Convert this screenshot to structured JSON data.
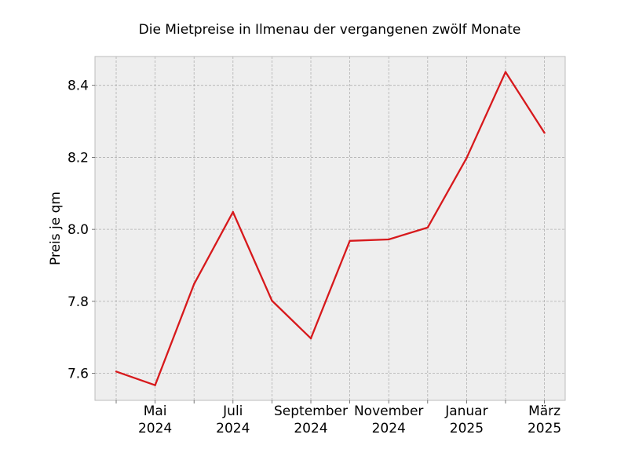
{
  "chart_data": {
    "type": "line",
    "title": "Die Mietpreise in Ilmenau der vergangenen zwölf Monate",
    "xlabel": "",
    "ylabel": "Preis je qm",
    "x": [
      "2024-04",
      "2024-05",
      "2024-06",
      "2024-07",
      "2024-08",
      "2024-09",
      "2024-10",
      "2024-11",
      "2024-12",
      "2025-01",
      "2025-02",
      "2025-03"
    ],
    "x_tick_labels": [
      {
        "x": "2024-05",
        "line1": "Mai",
        "line2": "2024"
      },
      {
        "x": "2024-07",
        "line1": "Juli",
        "line2": "2024"
      },
      {
        "x": "2024-09",
        "line1": "September",
        "line2": "2024"
      },
      {
        "x": "2024-11",
        "line1": "November",
        "line2": "2024"
      },
      {
        "x": "2025-01",
        "line1": "Januar",
        "line2": "2025"
      },
      {
        "x": "2025-03",
        "line1": "März",
        "line2": "2025"
      }
    ],
    "series": [
      {
        "values": [
          7.605,
          7.567,
          7.848,
          8.048,
          7.802,
          7.697,
          7.968,
          7.972,
          8.005,
          8.198,
          8.437,
          8.268
        ],
        "color": "#d7191c"
      }
    ],
    "ylim": [
      7.525,
      8.48
    ],
    "y_ticks": [
      7.6,
      7.8,
      8.0,
      8.2,
      8.4
    ],
    "y_tick_labels": [
      "7.6",
      "7.8",
      "8.0",
      "8.2",
      "8.4"
    ],
    "grid": true,
    "colors": {
      "background": "#eeeeee",
      "grid": "#b0b0b0",
      "frame": "#bcbcbc"
    }
  }
}
